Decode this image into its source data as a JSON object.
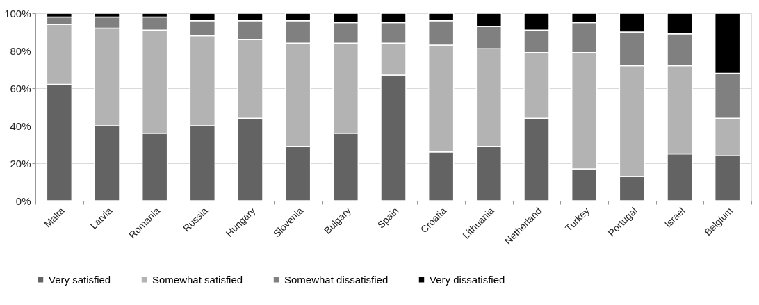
{
  "chart_data": {
    "type": "bar",
    "stacked": true,
    "categories": [
      "Malta",
      "Latvia",
      "Romania",
      "Russia",
      "Hungary",
      "Slovenia",
      "Bulgary",
      "Spain",
      "Croatia",
      "Lithuania",
      "Netherland",
      "Turkey",
      "Portugal",
      "Israel",
      "Belgium"
    ],
    "series": [
      {
        "name": "Very satisfied",
        "color": "#636363",
        "values": [
          62,
          40,
          36,
          40,
          44,
          29,
          36,
          67,
          26,
          29,
          44,
          17,
          13,
          25,
          24
        ]
      },
      {
        "name": "Somewhat satisfied",
        "color": "#b3b3b3",
        "values": [
          32,
          52,
          55,
          48,
          42,
          55,
          48,
          17,
          57,
          52,
          35,
          62,
          59,
          47,
          20
        ]
      },
      {
        "name": "Somewhat dissatisfied",
        "color": "#808080",
        "values": [
          4,
          6,
          7,
          8,
          10,
          12,
          11,
          11,
          13,
          12,
          12,
          16,
          18,
          17,
          24
        ]
      },
      {
        "name": "Very dissatisfied",
        "color": "#000000",
        "values": [
          2,
          2,
          2,
          4,
          4,
          4,
          5,
          5,
          4,
          7,
          9,
          5,
          10,
          11,
          32
        ]
      }
    ],
    "ylim": [
      0,
      100
    ],
    "yticks": [
      {
        "value": 0,
        "label": "0%"
      },
      {
        "value": 20,
        "label": "20%"
      },
      {
        "value": 40,
        "label": "40%"
      },
      {
        "value": 60,
        "label": "60%"
      },
      {
        "value": 80,
        "label": "80%"
      },
      {
        "value": 100,
        "label": "100%"
      }
    ],
    "grid": "y",
    "legend": "bottom"
  }
}
